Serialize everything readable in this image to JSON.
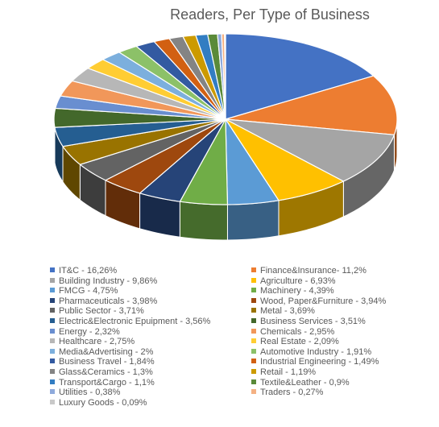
{
  "chart_data": {
    "type": "pie",
    "title": "Readers, Per Type of Business",
    "slices": [
      {
        "label": "IT&C - 16,26%",
        "value": 16.26,
        "color": "#4472C4"
      },
      {
        "label": "Finance&Insurance- 11,2%",
        "value": 11.2,
        "color": "#ED7D31"
      },
      {
        "label": "Building Industry - 9,86%",
        "value": 9.86,
        "color": "#A5A5A5"
      },
      {
        "label": "Agriculture - 6,93%",
        "value": 6.93,
        "color": "#FFC000"
      },
      {
        "label": "FMCG - 4,75%",
        "value": 4.75,
        "color": "#5B9BD5"
      },
      {
        "label": "Machinery - 4,39%",
        "value": 4.39,
        "color": "#70AD47"
      },
      {
        "label": "Pharmaceuticals - 3,98%",
        "value": 3.98,
        "color": "#264478"
      },
      {
        "label": "Wood, Paper&Furniture - 3,94%",
        "value": 3.94,
        "color": "#9E480E"
      },
      {
        "label": "Public Sector - 3,71%",
        "value": 3.71,
        "color": "#636363"
      },
      {
        "label": "Metal - 3,69%",
        "value": 3.69,
        "color": "#997300"
      },
      {
        "label": "Electric&Electronic Epuipment - 3,56%",
        "value": 3.56,
        "color": "#255E91"
      },
      {
        "label": "Business Services - 3,51%",
        "value": 3.51,
        "color": "#43682B"
      },
      {
        "label": "Energy - 2,32%",
        "value": 2.32,
        "color": "#698ED0"
      },
      {
        "label": "Chemicals - 2,95%",
        "value": 2.95,
        "color": "#F1975A"
      },
      {
        "label": "Healthcare - 2,75%",
        "value": 2.75,
        "color": "#B7B7B7"
      },
      {
        "label": "Real Estate - 2,09%",
        "value": 2.09,
        "color": "#FFCD33"
      },
      {
        "label": "Media&Advertising - 2%",
        "value": 2.0,
        "color": "#7CAFDD"
      },
      {
        "label": "Automotive Industry - 1,91%",
        "value": 1.91,
        "color": "#8CC168"
      },
      {
        "label": "Business Travel - 1,84%",
        "value": 1.84,
        "color": "#335AA1"
      },
      {
        "label": "Industrial Engineering - 1,49%",
        "value": 1.49,
        "color": "#D26012"
      },
      {
        "label": "Glass&Ceramics - 1,3%",
        "value": 1.3,
        "color": "#848484"
      },
      {
        "label": "Retail - 1,19%",
        "value": 1.19,
        "color": "#CC9A00"
      },
      {
        "label": "Transport&Cargo - 1,1%",
        "value": 1.1,
        "color": "#327DC2"
      },
      {
        "label": "Textile&Leather - 0,9%",
        "value": 0.9,
        "color": "#5A8A39"
      },
      {
        "label": "Utilities - 0,38%",
        "value": 0.38,
        "color": "#8FAADC"
      },
      {
        "label": "Traders - 0,27%",
        "value": 0.27,
        "color": "#F4B183"
      },
      {
        "label": "Luxury Goods - 0,09%",
        "value": 0.09,
        "color": "#C9C9C9"
      }
    ],
    "legend_position": "bottom"
  }
}
